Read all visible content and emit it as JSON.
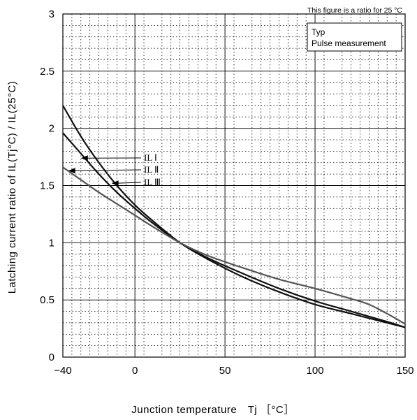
{
  "chart_data": {
    "type": "line",
    "title": "",
    "note": "This figure is a ratio for 25 °C",
    "legend": [
      "Typ",
      "Pulse measurement"
    ],
    "xlabel": "Junction temperature　Tj ［°C］",
    "ylabel": "Latching current ratio of IL(Tj°C) / IL(25°C)",
    "xlim": [
      -40,
      150
    ],
    "ylim": [
      0,
      3
    ],
    "xticks": [
      "-40",
      "0",
      "50",
      "100",
      "150"
    ],
    "yticks": [
      "0",
      "0.5",
      "1",
      "1.5",
      "2",
      "2.5",
      "3"
    ],
    "series": [
      {
        "name": "IL Ⅰ",
        "color": "#111111",
        "x": [
          -40,
          -30,
          -20,
          -10,
          0,
          10,
          25,
          40,
          60,
          80,
          100,
          120,
          140,
          150
        ],
        "y": [
          2.2,
          1.93,
          1.7,
          1.5,
          1.33,
          1.19,
          1.0,
          0.86,
          0.7,
          0.57,
          0.46,
          0.38,
          0.3,
          0.26
        ]
      },
      {
        "name": "IL Ⅱ",
        "color": "#111111",
        "x": [
          -40,
          -30,
          -20,
          -10,
          0,
          10,
          25,
          40,
          60,
          80,
          100,
          120,
          140,
          150
        ],
        "y": [
          1.96,
          1.78,
          1.6,
          1.44,
          1.3,
          1.17,
          1.0,
          0.87,
          0.73,
          0.6,
          0.49,
          0.4,
          0.31,
          0.26
        ]
      },
      {
        "name": "IL Ⅲ",
        "color": "#555555",
        "x": [
          -40,
          -30,
          -20,
          -10,
          0,
          10,
          25,
          40,
          60,
          80,
          100,
          120,
          130,
          140,
          150
        ],
        "y": [
          1.66,
          1.55,
          1.44,
          1.34,
          1.24,
          1.14,
          1.0,
          0.89,
          0.78,
          0.68,
          0.6,
          0.51,
          0.46,
          0.38,
          0.29
        ]
      }
    ],
    "series_labels": [
      "IL Ⅰ",
      "IL Ⅱ",
      "IL Ⅲ"
    ],
    "label_arrow_targets": [
      {
        "x": -30,
        "y": 1.74
      },
      {
        "x": -37,
        "y": 1.63
      },
      {
        "x": -13,
        "y": 1.52
      }
    ],
    "grid": true
  }
}
